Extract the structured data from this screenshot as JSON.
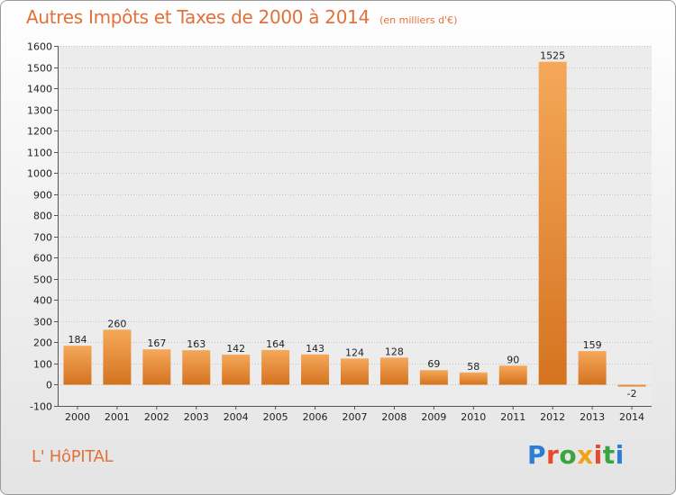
{
  "title": "Autres Impôts et Taxes de 2000 à 2014",
  "unit_note": "(en milliers d'€)",
  "commune": "L' HôPITAL",
  "brand": {
    "letters": [
      "P",
      "r",
      "o",
      "x",
      "i",
      "t",
      "i"
    ],
    "colors": [
      "#2a7fd4",
      "#e8492c",
      "#3aa540",
      "#f0a21a",
      "#e8492c",
      "#3aa540",
      "#2a7fd4"
    ]
  },
  "colors": {
    "title": "#e2703a",
    "bar_light": "#f5a85a",
    "bar_dark": "#d4731f"
  },
  "chart_data": {
    "type": "bar",
    "title": "Autres Impôts et Taxes de 2000 à 2014",
    "subtitle": "(en milliers d'€)",
    "xlabel": "",
    "ylabel": "",
    "categories": [
      "2000",
      "2001",
      "2002",
      "2003",
      "2004",
      "2005",
      "2006",
      "2007",
      "2008",
      "2009",
      "2010",
      "2011",
      "2012",
      "2013",
      "2014"
    ],
    "values": [
      184,
      260,
      167,
      163,
      142,
      164,
      143,
      124,
      128,
      69,
      58,
      90,
      1525,
      159,
      -2
    ],
    "ylim": [
      -100,
      1600
    ],
    "yticks": [
      -100,
      0,
      100,
      200,
      300,
      400,
      500,
      600,
      700,
      800,
      900,
      1000,
      1100,
      1200,
      1300,
      1400,
      1500,
      1600
    ],
    "grid": true,
    "legend": "none"
  }
}
